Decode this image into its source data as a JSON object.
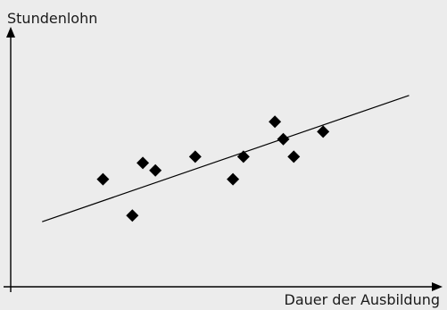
{
  "chart_data": {
    "type": "scatter",
    "title": "",
    "xlabel": "Dauer der Ausbildung",
    "ylabel": "Stundenlohn",
    "grid": false,
    "tick_labels": false,
    "xlim": [
      0,
      10
    ],
    "ylim": [
      0,
      10
    ],
    "points": [
      {
        "x": 2.2,
        "y": 4.3
      },
      {
        "x": 2.9,
        "y": 2.85
      },
      {
        "x": 3.15,
        "y": 4.95
      },
      {
        "x": 3.45,
        "y": 4.65
      },
      {
        "x": 4.4,
        "y": 5.2
      },
      {
        "x": 5.3,
        "y": 4.3
      },
      {
        "x": 5.55,
        "y": 5.2
      },
      {
        "x": 6.3,
        "y": 6.6
      },
      {
        "x": 6.5,
        "y": 5.9
      },
      {
        "x": 6.75,
        "y": 5.2
      },
      {
        "x": 7.45,
        "y": 6.2
      }
    ],
    "trend_line": {
      "x": [
        0.75,
        9.5
      ],
      "y": [
        2.6,
        7.65
      ]
    },
    "colors": {
      "marker": "#000000",
      "line": "#000000",
      "axis": "#000000",
      "background": "#ececec"
    }
  }
}
